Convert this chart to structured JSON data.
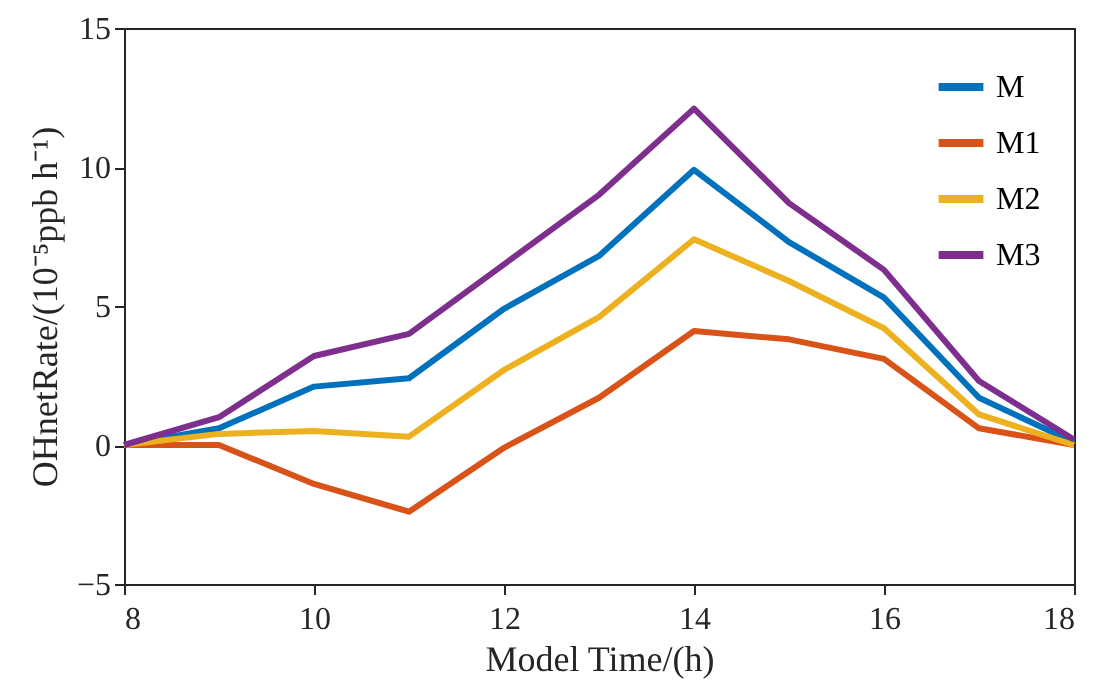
{
  "chart_data": {
    "type": "line",
    "xlabel": "Model Time/(h)",
    "ylabel": "OHnetRate/(10⁻⁵ppb h⁻¹)",
    "x": [
      8,
      9,
      10,
      11,
      12,
      13,
      14,
      15,
      16,
      17,
      18
    ],
    "xlim": [
      8,
      18
    ],
    "xticks": [
      8,
      10,
      12,
      14,
      16,
      18
    ],
    "ylim": [
      -5,
      15
    ],
    "yticks": [
      -5,
      0,
      5,
      10,
      15
    ],
    "grid": false,
    "legend": "top right",
    "marker": "none",
    "line_style": "solid",
    "series": [
      {
        "name": "M",
        "color": "#0072bd",
        "values": [
          0,
          0.6,
          2.1,
          2.4,
          4.9,
          6.8,
          9.9,
          7.3,
          5.3,
          1.7,
          0.1
        ]
      },
      {
        "name": "M1",
        "color": "#d95319",
        "values": [
          0,
          0,
          -1.4,
          -2.4,
          -0.1,
          1.7,
          4.1,
          3.8,
          3.1,
          0.6,
          0
        ]
      },
      {
        "name": "M2",
        "color": "#edb120",
        "values": [
          0,
          0.4,
          0.5,
          0.3,
          2.7,
          4.6,
          7.4,
          5.9,
          4.2,
          1.1,
          0
        ]
      },
      {
        "name": "M3",
        "color": "#7e2f8e",
        "values": [
          0,
          1.0,
          3.2,
          4.0,
          6.5,
          9.0,
          12.1,
          8.7,
          6.3,
          2.3,
          0.2
        ]
      }
    ]
  }
}
